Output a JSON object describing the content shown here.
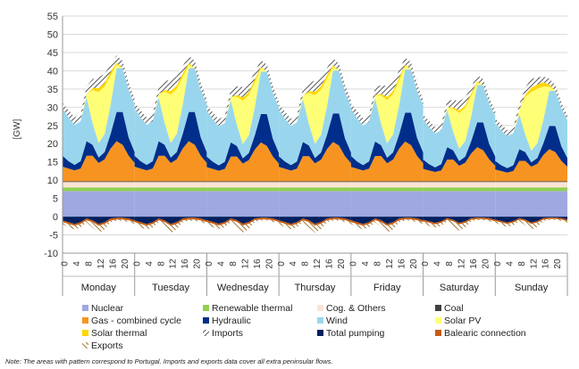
{
  "note": "Note: The areas with pattern correspond to Portugal. Imports and exports data cover all extra peninsular flows.",
  "chart_data": {
    "type": "area",
    "ylabel": "[GW]",
    "ylim": [
      -10,
      55
    ],
    "yticks": [
      -10,
      -5,
      0,
      5,
      10,
      15,
      20,
      25,
      30,
      35,
      40,
      45,
      50,
      55
    ],
    "hour_ticks": [
      "0",
      "4",
      "8",
      "12",
      "16",
      "20"
    ],
    "days": [
      "Monday",
      "Tuesday",
      "Wednesday",
      "Thursday",
      "Friday",
      "Saturday",
      "Sunday"
    ],
    "x_hours": [
      0,
      2,
      4,
      6,
      8,
      10,
      12,
      14,
      16,
      18,
      20,
      22,
      24
    ],
    "grid": "horizontal",
    "legend_position": "bottom",
    "legend": [
      {
        "name": "Nuclear",
        "color": "#9fa8e0"
      },
      {
        "name": "Renewable thermal",
        "color": "#92d050"
      },
      {
        "name": "Cog. & Others",
        "color": "#fbe4d5"
      },
      {
        "name": "Coal",
        "color": "#404040"
      },
      {
        "name": "Gas - combined cycle",
        "color": "#f79421"
      },
      {
        "name": "Hydraulic",
        "color": "#002e8a"
      },
      {
        "name": "Wind",
        "color": "#99d6ee"
      },
      {
        "name": "Solar PV",
        "color": "#ffff77"
      },
      {
        "name": "Solar thermal",
        "color": "#ffd700"
      },
      {
        "name": "Imports",
        "color": "#777777"
      },
      {
        "name": "Total pumping",
        "color": "#002060"
      },
      {
        "name": "Balearic connection",
        "color": "#c55a11"
      },
      {
        "name": "Exports",
        "color": "#a0722a"
      }
    ],
    "positive_series": [
      {
        "name": "Nuclear",
        "color": "#9fa8e0",
        "values": [
          7,
          7,
          7,
          7,
          7,
          7,
          7,
          7,
          7,
          7,
          7,
          7,
          7
        ]
      },
      {
        "name": "Renewable thermal",
        "color": "#92d050",
        "values": [
          1,
          1,
          1,
          1,
          1,
          1,
          1,
          1,
          1,
          1,
          1,
          1,
          1
        ]
      },
      {
        "name": "Cog. & Others",
        "color": "#fbe4d5",
        "values": [
          1.5,
          1.5,
          1.5,
          1.5,
          1.5,
          1.5,
          1.5,
          1.5,
          1.5,
          1.5,
          1.5,
          1.5,
          1.5
        ]
      },
      {
        "name": "Coal",
        "color": "#404040",
        "values": [
          0.2,
          0.2,
          0.2,
          0.2,
          0.2,
          0.2,
          0.2,
          0.2,
          0.2,
          0.2,
          0.2,
          0.2,
          0.2
        ]
      },
      {
        "name": "Gas - combined cycle",
        "color": "#f79421",
        "values": [
          4,
          3.5,
          3,
          3.5,
          7,
          7,
          5,
          6,
          9,
          11,
          10,
          7,
          5
        ]
      },
      {
        "name": "Hydraulic",
        "color": "#002e8a",
        "values": [
          3,
          2,
          1.5,
          2,
          4,
          3,
          1.5,
          2,
          4,
          8,
          9,
          5,
          3
        ]
      },
      {
        "name": "Wind",
        "color": "#99d6ee",
        "values": [
          13,
          12,
          11,
          11,
          12,
          6,
          4,
          5,
          8,
          12,
          12,
          13,
          13
        ]
      },
      {
        "name": "Solar PV",
        "color": "#ffff77",
        "values": [
          0,
          0,
          0,
          0,
          1,
          9,
          14,
          13,
          8,
          1,
          0,
          0,
          0
        ]
      },
      {
        "name": "Solar thermal",
        "color": "#ffd700",
        "values": [
          0,
          0,
          0,
          0,
          0,
          0.5,
          1,
          1,
          1,
          0.5,
          0,
          0,
          0
        ]
      },
      {
        "name": "Imports",
        "color": "#777777",
        "values": [
          1.5,
          2,
          2,
          2,
          2,
          2.5,
          3,
          2.5,
          2,
          2,
          2,
          2,
          1.5
        ]
      }
    ],
    "negative_series": [
      {
        "name": "Total pumping",
        "color": "#002060",
        "values": [
          -1,
          -1.5,
          -2,
          -1.5,
          -0.5,
          -1,
          -2,
          -1.5,
          -0.5,
          -0.3,
          -0.3,
          -0.5,
          -1
        ]
      },
      {
        "name": "Balearic connection",
        "color": "#c55a11",
        "values": [
          -0.5,
          -0.5,
          -0.5,
          -0.5,
          -0.5,
          -0.5,
          -0.5,
          -0.5,
          -0.5,
          -0.5,
          -0.5,
          -0.5,
          -0.5
        ]
      },
      {
        "name": "Exports",
        "color": "#a0722a",
        "values": [
          -0.5,
          -1,
          -1,
          -1,
          -0.5,
          -1.5,
          -2,
          -1.5,
          -0.5,
          -0.3,
          -0.3,
          -0.5,
          -0.5
        ]
      }
    ],
    "day_scale": [
      1.0,
      1.0,
      0.97,
      0.98,
      0.99,
      0.85,
      0.8
    ],
    "solar_scale": [
      1.0,
      0.95,
      0.85,
      0.95,
      0.85,
      0.7,
      1.15
    ]
  }
}
